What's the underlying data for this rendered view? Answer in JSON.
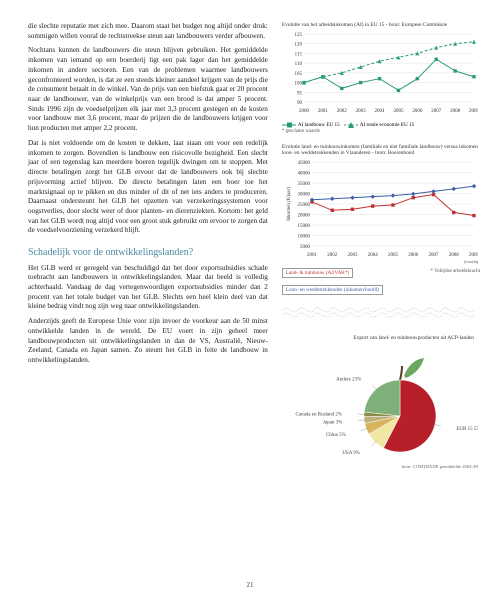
{
  "left": {
    "para1": "die slechte reputatie met zich mee. Daarom staat het budget nog altijd onder druk: sommigen willen vooral de rechtstreekse steun aan landbouwers verder afbouwen.",
    "para2": "Nochtans kunnen de landbouwers die steun blijven gebruiken. Het gemiddelde inkomen van iemand op een boerderij ligt een pak lager dan het gemiddelde inkomen in andere sectoren. Een van de problemen waarmee landbouwers geconfronteerd worden, is dat ze een steeds kleiner aandeel krijgen van de prijs die de consument betaalt in de winkel. Van de prijs van een biefstuk gaat er 20 procent naar de landbouwer, van de winkelprijs van een brood is dat amper 5 procent. Sinds 1996 zijn de voedselprijzen elk jaar met 3,3 procent gestegen en de kosten voor landbouw met 3,6 procent, maar de prijzen die de landbouwers krijgen voor hun producten met amper 2,2 procent.",
    "para3": "Dat is niet voldoende om de kosten te dekken, laat staan om voor een redelijk inkomen te zorgen. Bovendien is landbouw een risicovolle bezigheid. Een slecht jaar of een tegenslag kan meerdere boeren tegelijk dwingen om te stoppen. Met directe betalingen zorgt het GLB ervoor dat de landbouwers ook bij slechte prijsvorming actief blijven. De directe betalingen laten een boer toe het marktsignaal op te pikken en dus minder of dit of net iets anders te produceren. Daarnaast ondersteunt het GLB het opzetten van verzekeringssystemen voor oogstverlies, door slecht weer of door planten- en dierenziekten. Kortom: het geld van het GLB wordt nog altijd voor een groot stuk gebruikt om ervoor te zorgen dat de voedselvoorziening verzekerd blijft.",
    "section_title": "Schadelijk voor de ontwikkelingslanden?",
    "para4": "Het GLB werd er geregeld van beschuldigd dat het door exportsubsidies schade toebracht aan landbouwers in ontwikkelingslanden. Maar dat beeld is volledig achterhaald. Vandaag de dag vertegenwoordigen exportsubsidies minder dan 2 procent van het totale budget van het GLB. Slechts een heel klein deel van dat kleine bedrag vindt nog zijn weg naar ontwikkelingslanden.",
    "para5": "Anderzijds geeft de Europese Unie voor zijn invoer de voorkeur aan de 50 minst ontwikkelde landen in de wereld. De EU voert in zijn geheel meer landbouwproducten uit ontwikkelingslanden in dan de VS, Australië, Nieuw-Zeeland, Canada en Japan samen. Zo steunt het GLB in feite de landbouw in ontwikkelingslanden."
  },
  "chart1": {
    "title": "Evolutie van het arbeidsinkomen (AI) in EU 15 - bron: Europese Commissie",
    "years": [
      "2000",
      "2001",
      "2002",
      "2003",
      "2004",
      "2005",
      "2006",
      "2007",
      "2008",
      "2009"
    ],
    "series_a_label": "AI landbouw EU 15",
    "series_a_values": [
      100,
      103,
      97,
      100,
      102,
      96,
      102,
      112,
      106,
      103
    ],
    "series_a_color": "#2a9d6f",
    "series_b_label": "AI totale economie EU 15",
    "series_b_values": [
      100,
      103,
      105,
      108,
      111,
      113,
      115,
      118,
      120,
      121
    ],
    "series_b_color": "#2a9d6f",
    "ylim": [
      90,
      125
    ],
    "ytick_step": 5,
    "grid_color": "#d8d8d8",
    "text_color": "#333",
    "footnote": "* geschatte waarde"
  },
  "chart2": {
    "title": "Evolutie land- en tuinbouwinkomen (familiale en niet familiale landbouw) versus inkomen loon- en weddetrekkenden in Vlaanderen - bron: Boerenbond",
    "years": [
      "2001",
      "2002",
      "2003",
      "2004",
      "2005",
      "2006",
      "2007",
      "2008",
      "2009"
    ],
    "series_a_label": "Land- & tuinbouw (AI/VAK*)",
    "series_a_values": [
      26000,
      22000,
      22500,
      24000,
      24500,
      28000,
      29500,
      21000,
      19500
    ],
    "series_a_color": "#c03131",
    "series_b_label": "Loon- en weddetrekkenden (inkomen/hoofd)",
    "series_b_values": [
      27000,
      27500,
      28000,
      28500,
      29000,
      29800,
      31000,
      32200,
      33500
    ],
    "series_b_color": "#3b5fa6",
    "ylabel": "Inkomen (€/jaar)",
    "ylim": [
      5000,
      45000
    ],
    "ytick_step": 5000,
    "grid_color": "#d8d8d8",
    "footnote_right": "* Voltijdse arbeidskracht",
    "xnote_last": "(voorlopig)"
  },
  "pie": {
    "title": "Export van land- en tuinbouwproducten uit ACP-landen",
    "slices": [
      {
        "label": "EUR 15 57%",
        "value": 57,
        "color": "#b7202a"
      },
      {
        "label": "USA 9%",
        "value": 9,
        "color": "#efe7a2"
      },
      {
        "label": "China 5%",
        "value": 5,
        "color": "#d8b45c"
      },
      {
        "label": "Japan 3%",
        "value": 3,
        "color": "#bdb078"
      },
      {
        "label": "Canada en Rusland 2%",
        "value": 2,
        "color": "#8a8a4a"
      },
      {
        "label": "Andere 23%",
        "value": 23,
        "color": "#7fb07a"
      }
    ],
    "source": "bron: COMTRADE gemiddelde 2004-2008"
  },
  "page_number": "21"
}
